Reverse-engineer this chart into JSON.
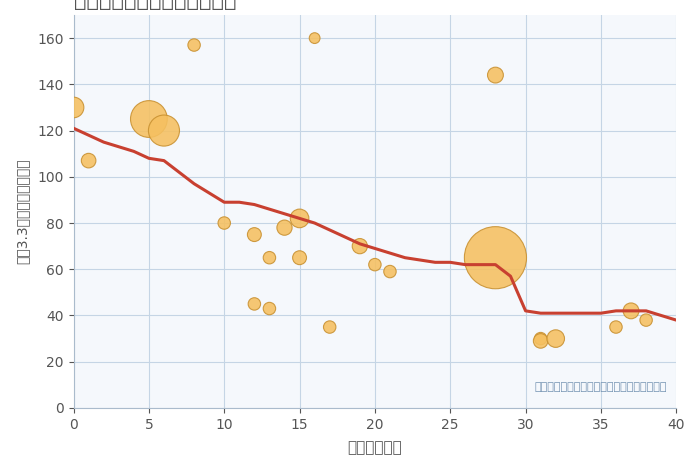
{
  "xlabel": "築年数（年）",
  "ylabel": "坪（3.3㎡）単価（万円）",
  "annotation": "円の大きさは、取引のあった物件面積を示す",
  "fig_background": "#ffffff",
  "plot_background": "#f5f8fc",
  "scatter_color": "#f5c060",
  "scatter_edge_color": "#c89030",
  "line_color": "#c84030",
  "xlim": [
    0,
    40
  ],
  "ylim": [
    0,
    170
  ],
  "xticks": [
    0,
    5,
    10,
    15,
    20,
    25,
    30,
    35,
    40
  ],
  "yticks": [
    0,
    20,
    40,
    60,
    80,
    100,
    120,
    140,
    160
  ],
  "scatter_x": [
    0,
    1,
    5,
    6,
    8,
    10,
    12,
    12,
    13,
    13,
    14,
    15,
    15,
    16,
    17,
    19,
    20,
    21,
    28,
    28,
    31,
    31,
    32,
    36,
    37,
    38
  ],
  "scatter_y": [
    130,
    107,
    125,
    120,
    157,
    80,
    75,
    45,
    65,
    43,
    78,
    82,
    65,
    160,
    35,
    70,
    62,
    59,
    144,
    65,
    30,
    29,
    30,
    35,
    42,
    38
  ],
  "scatter_size": [
    220,
    110,
    700,
    500,
    80,
    80,
    100,
    80,
    80,
    80,
    120,
    180,
    100,
    60,
    80,
    120,
    80,
    80,
    130,
    2000,
    80,
    110,
    160,
    80,
    130,
    80
  ],
  "trend_x": [
    0,
    1,
    2,
    3,
    4,
    5,
    6,
    7,
    8,
    9,
    10,
    11,
    12,
    13,
    14,
    15,
    16,
    17,
    18,
    19,
    20,
    21,
    22,
    23,
    24,
    25,
    26,
    27,
    28,
    29,
    30,
    31,
    32,
    33,
    34,
    35,
    36,
    37,
    38,
    39,
    40
  ],
  "trend_y": [
    121,
    118,
    115,
    113,
    111,
    108,
    107,
    102,
    97,
    93,
    89,
    89,
    88,
    86,
    84,
    82,
    80,
    77,
    74,
    71,
    69,
    67,
    65,
    64,
    63,
    63,
    62,
    62,
    62,
    57,
    42,
    41,
    41,
    41,
    41,
    41,
    42,
    42,
    42,
    40,
    38
  ],
  "title_color": "#555555",
  "annotation_color": "#7090b0",
  "grid_color": "#c5d5e5",
  "spine_color": "#aabbcc",
  "tick_color": "#555555"
}
